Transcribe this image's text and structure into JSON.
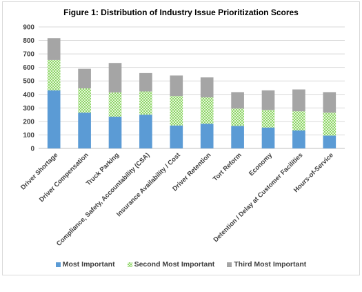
{
  "chart_data": {
    "type": "bar",
    "stacked": true,
    "title": "Figure 1: Distribution of Industry Issue Prioritization Scores",
    "categories": [
      "Driver Shortage",
      "Driver Compensation",
      "Truck Parking",
      "Compliance, Safety, Accountability (CSA)",
      "Insurance Availability / Cost",
      "Driver Retention",
      "Tort Reform",
      "Economy",
      "Detention / Delay at Customer Facilities",
      "Hours-of-Service"
    ],
    "series": [
      {
        "name": "Most Important",
        "color": "#5b9bd5",
        "pattern": "solid",
        "values": [
          430,
          265,
          235,
          250,
          170,
          183,
          167,
          155,
          133,
          95
        ]
      },
      {
        "name": "Second Most Important",
        "color": "#b3e89a",
        "pattern": "checker",
        "values": [
          225,
          180,
          180,
          172,
          218,
          195,
          128,
          130,
          142,
          170
        ]
      },
      {
        "name": "Third Most Important",
        "color": "#a5a5a5",
        "pattern": "solid",
        "values": [
          162,
          145,
          218,
          136,
          152,
          148,
          122,
          145,
          162,
          152
        ]
      }
    ],
    "ylim": [
      0,
      900
    ],
    "yticks": [
      "0",
      "100",
      "200",
      "300",
      "400",
      "500",
      "600",
      "700",
      "800",
      "900"
    ],
    "grid": true,
    "legend_position": "bottom"
  }
}
